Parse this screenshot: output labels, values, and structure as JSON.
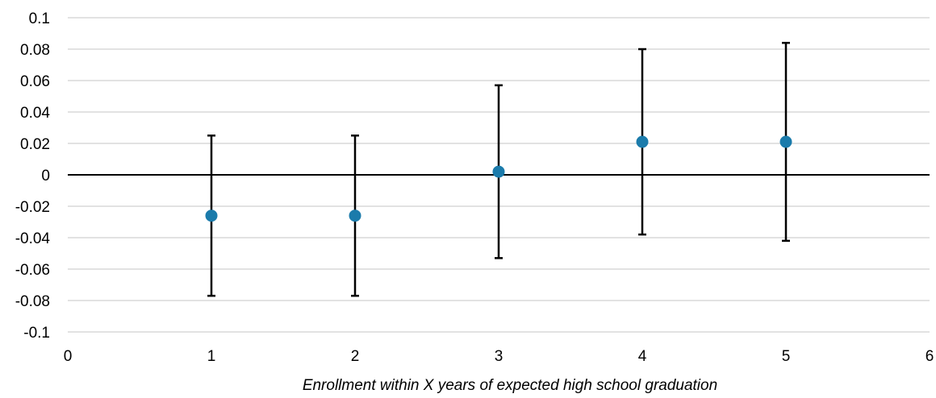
{
  "chart_data": {
    "type": "scatter",
    "title": "",
    "xlabel": "Enrollment within X years of expected high school graduation",
    "ylabel": "",
    "xlim": [
      0,
      6
    ],
    "ylim": [
      -0.1,
      0.1
    ],
    "x_ticks": [
      "0",
      "1",
      "2",
      "3",
      "4",
      "5",
      "6"
    ],
    "y_ticks": [
      "0.1",
      "0.08",
      "0.06",
      "0.04",
      "0.02",
      "0",
      "-0.02",
      "-0.04",
      "-0.06",
      "-0.08",
      "-0.1"
    ],
    "grid": true,
    "colors": {
      "marker": "#1b7bab",
      "error_bar": "#000000",
      "grid": "#d9d9d9",
      "zero_line": "#000000"
    },
    "series": [
      {
        "points": [
          {
            "x": 1,
            "y": -0.026,
            "low": -0.077,
            "high": 0.025
          },
          {
            "x": 2,
            "y": -0.026,
            "low": -0.077,
            "high": 0.025
          },
          {
            "x": 3,
            "y": 0.002,
            "low": -0.053,
            "high": 0.057
          },
          {
            "x": 4,
            "y": 0.021,
            "low": -0.038,
            "high": 0.08
          },
          {
            "x": 5,
            "y": 0.021,
            "low": -0.042,
            "high": 0.084
          }
        ]
      }
    ]
  }
}
